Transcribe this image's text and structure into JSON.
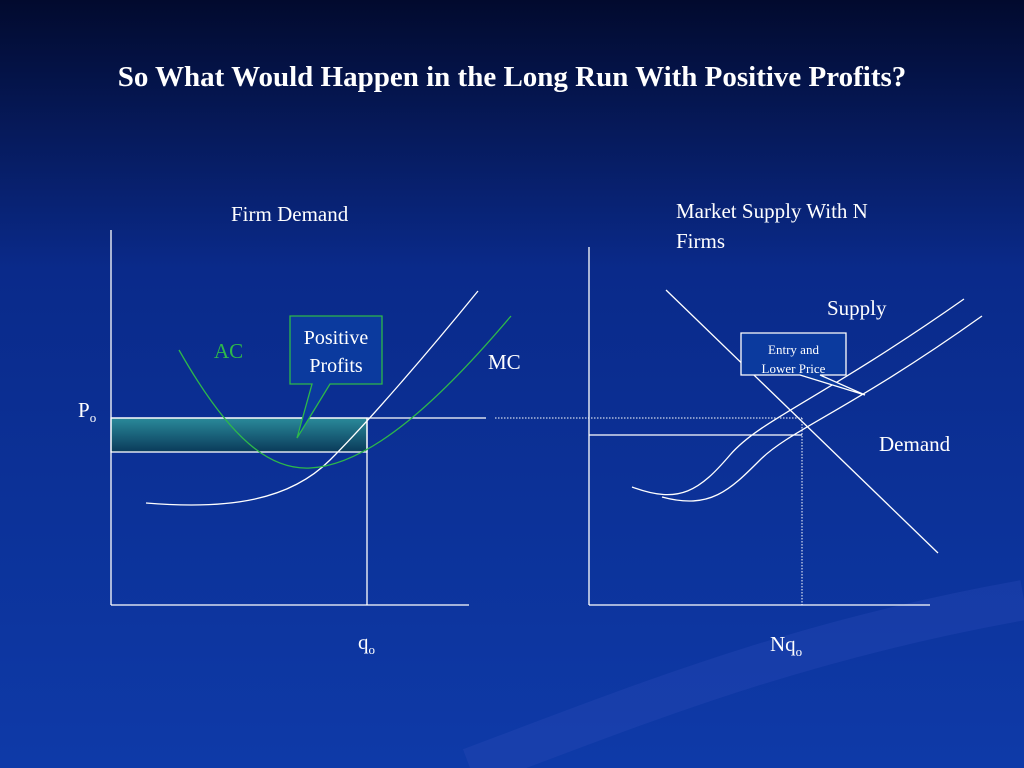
{
  "title": "So What Would Happen in the Long Run With Positive Profits?",
  "firm_panel": {
    "label": "Firm Demand",
    "ac_label": "AC",
    "mc_label": "MC",
    "price_label": {
      "text": "P",
      "sub": "o"
    },
    "quantity_label": {
      "text": "q",
      "sub": "o"
    },
    "callout": [
      "Positive",
      "Profits"
    ]
  },
  "market_panel": {
    "label": "Market Supply With N Firms",
    "supply_label": "Supply",
    "demand_label": "Demand",
    "quantity_label": {
      "text": "Nq",
      "sub": "o"
    },
    "callout": [
      "Entry and",
      "Lower Price"
    ]
  }
}
